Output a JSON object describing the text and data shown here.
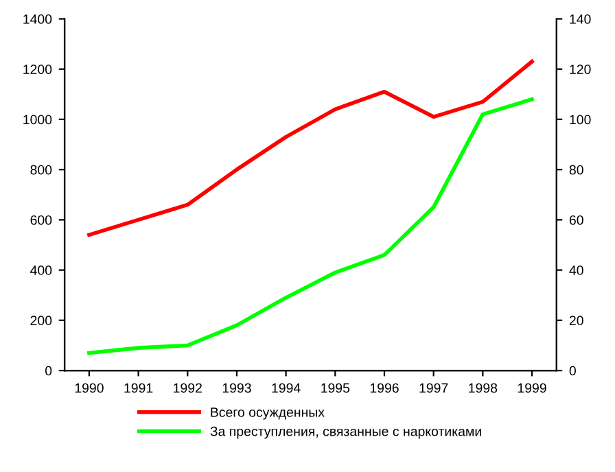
{
  "chart_data": {
    "type": "line",
    "categories": [
      "1990",
      "1991",
      "1992",
      "1993",
      "1994",
      "1995",
      "1996",
      "1997",
      "1998",
      "1999"
    ],
    "series": [
      {
        "name": "Всего осужденных",
        "color": "#ff0000",
        "values": [
          540,
          600,
          660,
          800,
          930,
          1040,
          1110,
          1010,
          1070,
          1230
        ]
      },
      {
        "name": "За преступления, связанные с наркотиками",
        "color": "#00ff00",
        "axis": "y2",
        "values": [
          7,
          9,
          10,
          18,
          29,
          39,
          46,
          65,
          102,
          108
        ]
      }
    ],
    "ylim": [
      0,
      1400
    ],
    "yticks": [
      0,
      200,
      400,
      600,
      800,
      1000,
      1200,
      1400
    ],
    "y2lim": [
      0,
      140
    ],
    "y2ticks": [
      0,
      20,
      40,
      60,
      80,
      100,
      120,
      140
    ],
    "grid": false,
    "legend": "bottom",
    "marker": "none",
    "line_style": "solid"
  }
}
